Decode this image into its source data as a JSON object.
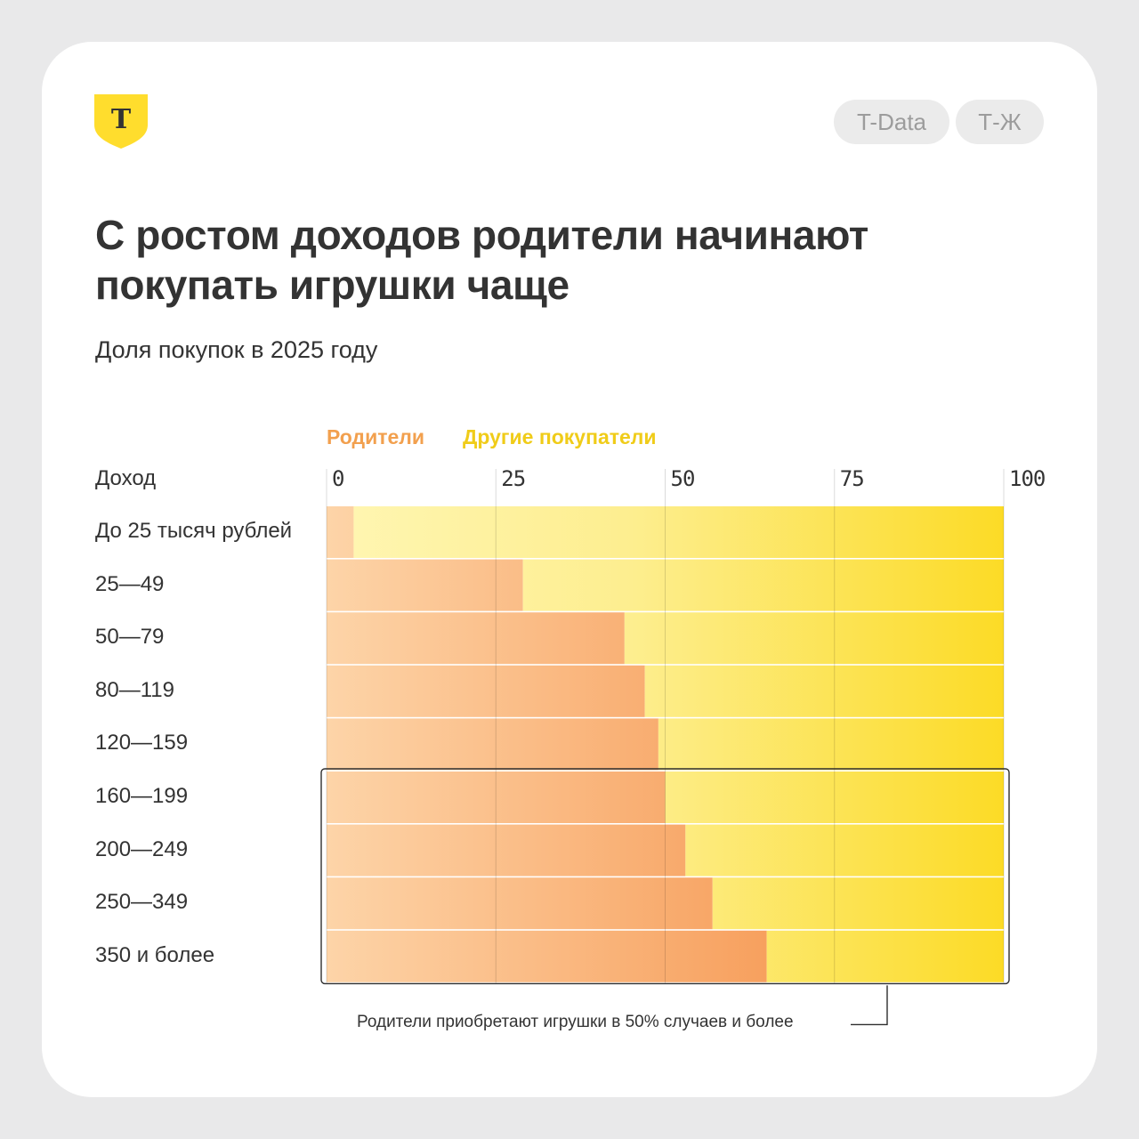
{
  "branding": {
    "logo": {
      "icon": "t-bank-shield-icon",
      "letter": "Т",
      "color": "#ffdd2d"
    },
    "tags": [
      "T-Data",
      "Т-Ж"
    ]
  },
  "chart_data": {
    "type": "bar",
    "orientation": "horizontal",
    "stacked": true,
    "title": "С ростом доходов родители начинают покупать игрушки чаще",
    "subtitle": "Доля покупок в 2025 году",
    "category_axis_label": "Доход",
    "categories": [
      "До 25 тысяч рублей",
      "25—49",
      "50—79",
      "80—119",
      "120—159",
      "160—199",
      "200—249",
      "250—349",
      "350 и более"
    ],
    "series": [
      {
        "name": "Родители",
        "color": "#f7a462",
        "values": [
          4,
          29,
          44,
          47,
          49,
          50,
          53,
          57,
          65
        ]
      },
      {
        "name": "Другие покупатели",
        "color": "#fcde2e",
        "values": [
          96,
          71,
          56,
          53,
          51,
          50,
          47,
          43,
          35
        ]
      }
    ],
    "xlim": [
      0,
      100
    ],
    "xticks": [
      0,
      25,
      50,
      75,
      100
    ],
    "grid": true,
    "legend_position": "top",
    "annotation": {
      "text": "Родители приобретают игрушки в 50% случаев и более",
      "applies_to": [
        "160—199",
        "200—249",
        "250—349",
        "350 и более"
      ]
    }
  }
}
